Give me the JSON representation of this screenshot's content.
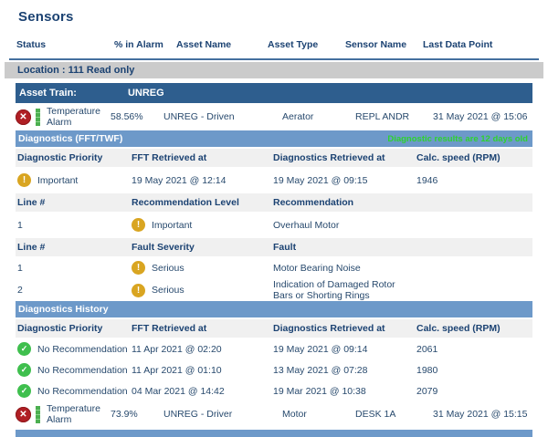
{
  "page": {
    "title": "Sensors"
  },
  "icons": {
    "error_glyph": "✕",
    "warning_glyph": "!",
    "ok_glyph": "✓"
  },
  "colors": {
    "heading_text": "#1b4272",
    "asset_train_bar": "#2e5e8e",
    "section_bar": "#6d99c9",
    "location_bar_bg": "#cbcbcb",
    "error_icon": "#b01f24",
    "warning_icon": "#d9a521",
    "ok_icon": "#3fbf4e",
    "alarm_trend_bar": "#4caf50",
    "age_note_green": "#2ed32e"
  },
  "sensor_table": {
    "columns": [
      "Status",
      "% in Alarm",
      "Asset Name",
      "Asset Type",
      "Sensor Name",
      "Last Data Point"
    ],
    "location_label": "Location : 111 Read only",
    "asset_train_label": "Asset Train:",
    "asset_train_value": "UNREG"
  },
  "sensor_rows": [
    {
      "status": "Temperature Alarm",
      "pct_in_alarm": "58.56%",
      "asset_name": "UNREG - Driven",
      "asset_type": "Aerator",
      "sensor_name": "REPL ANDR",
      "last_data_point": "31 May 2021 @ 15:06"
    },
    {
      "status": "Temperature Alarm",
      "pct_in_alarm": "73.9%",
      "asset_name": "UNREG - Driver",
      "asset_type": "Motor",
      "sensor_name": "DESK 1A",
      "last_data_point": "31 May 2021 @ 15:15"
    }
  ],
  "diagnostics": {
    "title": "Diagnostics (FFT/TWF)",
    "age_note": "Diagnostic results are 12 days old",
    "summary": {
      "headers": [
        "Diagnostic Priority",
        "FFT Retrieved at",
        "Diagnostics Retrieved at",
        "Calc. speed (RPM)"
      ],
      "row": {
        "priority": "Important",
        "fft": "19 May 2021 @ 12:14",
        "retrieved": "19 May 2021 @ 09:15",
        "rpm": "1946"
      }
    },
    "recommendations": {
      "headers": [
        "Line #",
        "Recommendation Level",
        "Recommendation"
      ],
      "rows": [
        {
          "line": "1",
          "level": "Important",
          "text": "Overhaul Motor"
        }
      ]
    },
    "faults": {
      "headers": [
        "Line #",
        "Fault Severity",
        "Fault"
      ],
      "rows": [
        {
          "line": "1",
          "severity": "Serious",
          "text": "Motor Bearing Noise"
        },
        {
          "line": "2",
          "severity": "Serious",
          "text": "Indication of Damaged Rotor Bars or Shorting Rings"
        }
      ]
    }
  },
  "history": {
    "title": "Diagnostics History",
    "headers": [
      "Diagnostic Priority",
      "FFT Retrieved at",
      "Diagnostics Retrieved at",
      "Calc. speed (RPM)"
    ],
    "rows": [
      {
        "priority": "No Recommendation",
        "fft": "11 Apr 2021 @ 02:20",
        "retrieved": "19 May 2021 @ 09:14",
        "rpm": "2061"
      },
      {
        "priority": "No Recommendation",
        "fft": "11 Apr 2021 @ 01:10",
        "retrieved": "13 May 2021 @ 07:28",
        "rpm": "1980"
      },
      {
        "priority": "No Recommendation",
        "fft": "04 Mar 2021 @ 14:42",
        "retrieved": "19 Mar 2021 @ 10:38",
        "rpm": "2079"
      }
    ]
  }
}
